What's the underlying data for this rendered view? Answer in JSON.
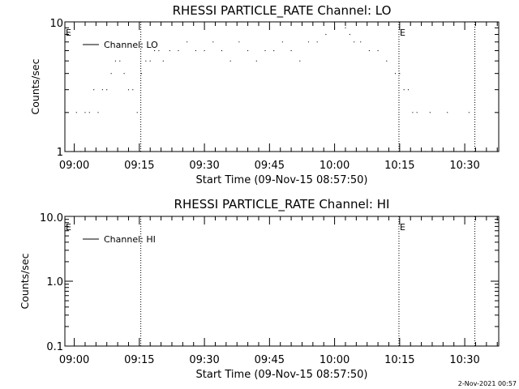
{
  "chart_data": [
    {
      "type": "line",
      "title": "RHESSI PARTICLE_RATE Channel: LO",
      "xlabel": "Start Time (09-Nov-15 08:57:50)",
      "ylabel": "Counts/sec",
      "yscale": "log",
      "ylim": [
        1,
        10
      ],
      "ytick_labels": [
        "1",
        "10"
      ],
      "xlim": [
        "08:57:50",
        "10:37:50"
      ],
      "x_tick_labels": [
        "09:00",
        "09:15",
        "09:30",
        "09:45",
        "10:00",
        "10:15",
        "10:30"
      ],
      "legend": {
        "placement": "top-left",
        "entries": [
          "Channel: LO"
        ]
      },
      "grid": false,
      "event_markers": [
        {
          "label": "E",
          "time": "08:57:50",
          "line": false
        },
        {
          "label": "",
          "time": "09:15:20",
          "line": true
        },
        {
          "label": "E",
          "time": "10:14:50",
          "line": true
        },
        {
          "label": "",
          "time": "10:32:20",
          "line": true
        }
      ],
      "series": [
        {
          "name": "Channel: LO",
          "x": [
            "08:59:30",
            "09:00:30",
            "09:01:30",
            "09:02:30",
            "09:03:30",
            "09:04:30",
            "09:05:30",
            "09:06:30",
            "09:07:30",
            "09:08:30",
            "09:09:30",
            "09:10:30",
            "09:11:30",
            "09:12:30",
            "09:13:30",
            "09:14:30",
            "09:15:30",
            "09:16:30",
            "09:17:30",
            "09:18:30",
            "09:19:30",
            "09:20:30",
            "09:22:00",
            "09:24:00",
            "09:26:00",
            "09:28:00",
            "09:30:00",
            "09:32:00",
            "09:34:00",
            "09:36:00",
            "09:38:00",
            "09:40:00",
            "09:42:00",
            "09:44:00",
            "09:46:00",
            "09:48:00",
            "09:50:00",
            "09:52:00",
            "09:54:00",
            "09:56:00",
            "09:58:00",
            "10:00:00",
            "10:01:30",
            "10:02:30",
            "10:03:30",
            "10:04:30",
            "10:06:00",
            "10:08:00",
            "10:10:00",
            "10:12:00",
            "10:14:00",
            "10:15:00",
            "10:16:00",
            "10:17:00",
            "10:18:00",
            "10:19:00",
            "10:20:00",
            "10:21:00",
            "10:22:00",
            "10:23:00",
            "10:24:00",
            "10:25:00",
            "10:26:00",
            "10:27:00",
            "10:28:00",
            "10:29:00",
            "10:30:00",
            "10:31:00"
          ],
          "values": [
            1,
            2,
            1,
            2,
            2,
            3,
            2,
            3,
            3,
            4,
            5,
            5,
            4,
            3,
            3,
            2,
            4,
            5,
            5,
            6,
            6,
            5,
            6,
            6,
            7,
            6,
            6,
            7,
            6,
            5,
            7,
            6,
            5,
            6,
            6,
            7,
            6,
            5,
            7,
            7,
            8,
            9,
            10,
            9,
            8,
            7,
            7,
            6,
            6,
            5,
            4,
            4,
            3,
            3,
            2,
            2,
            1,
            1,
            2,
            1,
            1,
            1,
            2,
            1,
            1,
            1,
            1,
            2
          ]
        }
      ]
    },
    {
      "type": "line",
      "title": "RHESSI PARTICLE_RATE Channel: HI",
      "xlabel": "Start Time (09-Nov-15 08:57:50)",
      "ylabel": "Counts/sec",
      "yscale": "log",
      "ylim": [
        0.1,
        10
      ],
      "ytick_labels": [
        "0.1",
        "1.0",
        "10.0"
      ],
      "xlim": [
        "08:57:50",
        "10:37:50"
      ],
      "x_tick_labels": [
        "09:00",
        "09:15",
        "09:30",
        "09:45",
        "10:00",
        "10:15",
        "10:30"
      ],
      "legend": {
        "placement": "top-left",
        "entries": [
          "Channel: HI"
        ]
      },
      "grid": false,
      "event_markers": [
        {
          "label": "E",
          "time": "08:57:50",
          "line": false
        },
        {
          "label": "",
          "time": "09:15:20",
          "line": true
        },
        {
          "label": "E",
          "time": "10:14:50",
          "line": true
        },
        {
          "label": "",
          "time": "10:32:20",
          "line": true
        }
      ],
      "series": [
        {
          "name": "Channel: HI",
          "x": [],
          "values": []
        }
      ]
    }
  ],
  "footer": {
    "timestamp": "2-Nov-2021 00:57"
  }
}
